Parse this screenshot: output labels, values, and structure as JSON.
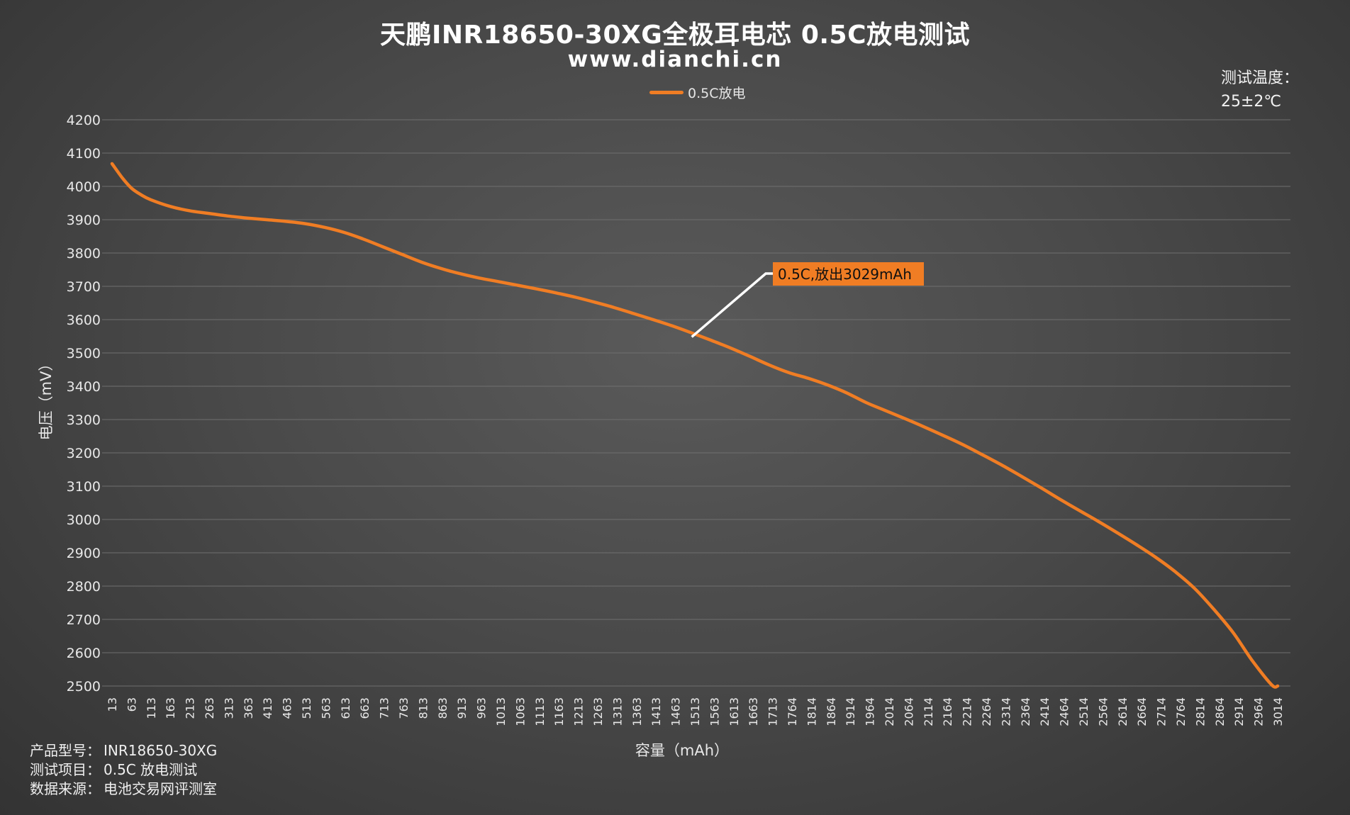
{
  "title": "天鹏INR18650-30XG全极耳电芯 0.5C放电测试",
  "subtitle": "www.dianchi.cn",
  "test_temperature": {
    "label": "测试温度：",
    "value": "25±2℃"
  },
  "footer": [
    {
      "label": "产品型号：",
      "value": "INR18650-30XG"
    },
    {
      "label": "测试项目：",
      "value": "0.5C 放电测试"
    },
    {
      "label": "数据来源：",
      "value": "电池交易网评测室"
    }
  ],
  "colors": {
    "series": "#f07d24",
    "gridline": "#6f6f6f",
    "annotation_bg": "#f07d24",
    "annotation_leader": "#ffffff"
  },
  "chart_data": {
    "type": "line",
    "xlabel": "容量（mAh）",
    "ylabel": "电压（mV）",
    "ylim": [
      2500,
      4200
    ],
    "y_ticks": [
      4200,
      4100,
      4000,
      3900,
      3800,
      3700,
      3600,
      3500,
      3400,
      3300,
      3200,
      3100,
      3000,
      2900,
      2800,
      2700,
      2600,
      2500
    ],
    "x_tick_labels": [
      "13",
      "63",
      "113",
      "163",
      "213",
      "263",
      "313",
      "363",
      "413",
      "463",
      "513",
      "563",
      "613",
      "663",
      "713",
      "763",
      "813",
      "863",
      "913",
      "963",
      "1013",
      "1063",
      "1113",
      "1163",
      "1213",
      "1263",
      "1313",
      "1363",
      "1413",
      "1463",
      "1513",
      "1563",
      "1613",
      "1663",
      "1713",
      "1764",
      "1814",
      "1864",
      "1914",
      "1964",
      "2014",
      "2064",
      "2114",
      "2164",
      "2214",
      "2264",
      "2314",
      "2364",
      "2414",
      "2464",
      "2514",
      "2564",
      "2614",
      "2664",
      "2714",
      "2764",
      "2814",
      "2864",
      "2914",
      "2964",
      "3014"
    ],
    "xlim": [
      13,
      3029
    ],
    "grid": "horizontal",
    "legend": "top-center",
    "series": [
      {
        "name": "0.5C放电",
        "x": [
          13,
          40,
          63,
          88,
          113,
          163,
          213,
          263,
          313,
          363,
          413,
          463,
          513,
          563,
          613,
          663,
          713,
          763,
          813,
          863,
          913,
          963,
          1013,
          1063,
          1113,
          1163,
          1213,
          1263,
          1313,
          1363,
          1413,
          1463,
          1513,
          1563,
          1613,
          1663,
          1713,
          1764,
          1814,
          1864,
          1914,
          1964,
          2014,
          2064,
          2114,
          2164,
          2214,
          2264,
          2314,
          2364,
          2414,
          2464,
          2514,
          2564,
          2614,
          2664,
          2714,
          2764,
          2814,
          2864,
          2914,
          2964,
          3014,
          3029
        ],
        "values": [
          4068,
          4025,
          3995,
          3975,
          3960,
          3940,
          3927,
          3919,
          3911,
          3905,
          3900,
          3895,
          3888,
          3877,
          3862,
          3842,
          3819,
          3796,
          3773,
          3754,
          3738,
          3725,
          3714,
          3703,
          3692,
          3680,
          3667,
          3652,
          3636,
          3618,
          3600,
          3581,
          3560,
          3538,
          3515,
          3490,
          3464,
          3441,
          3424,
          3404,
          3380,
          3351,
          3327,
          3303,
          3278,
          3252,
          3225,
          3195,
          3164,
          3131,
          3097,
          3062,
          3028,
          2995,
          2960,
          2924,
          2886,
          2843,
          2793,
          2730,
          2660,
          2575,
          2503,
          2500
        ]
      }
    ],
    "annotations": [
      {
        "text": "0.5C,放出3029mAh",
        "x": 1513,
        "y": 3548
      }
    ]
  }
}
